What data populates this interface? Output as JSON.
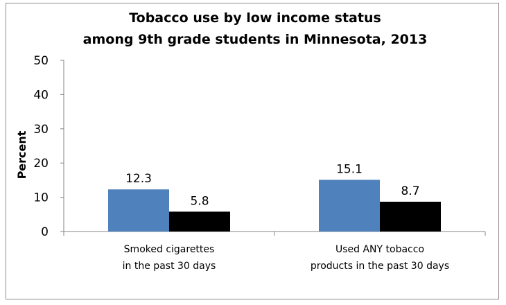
{
  "chart_data": {
    "type": "bar",
    "title_lines": [
      "Tobacco use by low income status",
      "among 9th grade students in Minnesota, 2013"
    ],
    "ylabel": "Percent",
    "xlabel": "",
    "ylim": [
      0,
      50
    ],
    "yticks": [
      0,
      10,
      20,
      30,
      40,
      50
    ],
    "categories": [
      [
        "Smoked cigarettes",
        "in the past 30 days"
      ],
      [
        "Used ANY tobacco",
        "products in the past 30 days"
      ]
    ],
    "series": [
      {
        "values": [
          12.3,
          15.1
        ],
        "color": "#4f81bd"
      },
      {
        "values": [
          5.8,
          8.7
        ],
        "color": "#000000"
      }
    ],
    "data_labels": [
      [
        "12.3",
        "15.1"
      ],
      [
        "5.8",
        "8.7"
      ]
    ],
    "grid": false,
    "legend": "none",
    "axis_color": "#868686"
  }
}
